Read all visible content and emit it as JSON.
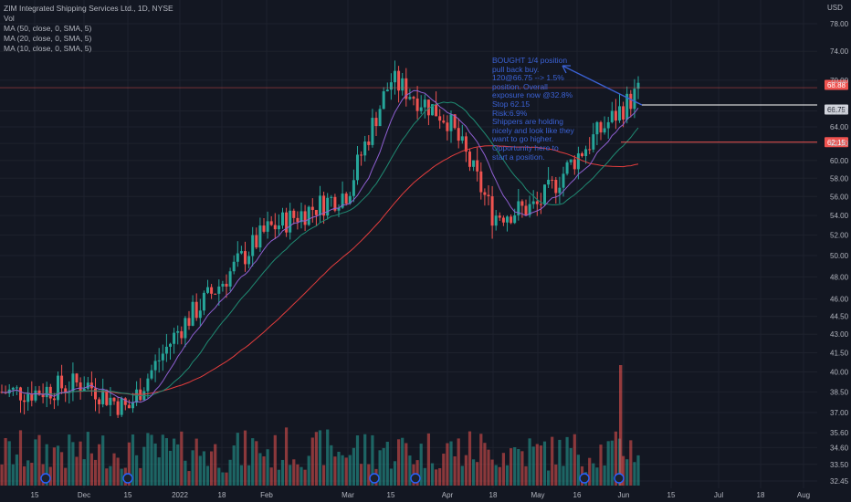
{
  "legend": {
    "title": "ZIM Integrated Shipping Services Ltd., 1D, NYSE",
    "vol": "Vol",
    "ma50": "MA (50, close, 0, SMA, 5)",
    "ma20": "MA (20, close, 0, SMA, 5)",
    "ma10": "MA (10, close, 0, SMA, 5)"
  },
  "currency": "USD",
  "annotation": {
    "lines": [
      "BOUGHT 1/4 position",
      "pull back buy.",
      "120@66.75 --> 1.5%",
      "position. Overall",
      "exposure now @32.8%",
      "Stop 62.15",
      "Risk:6.9%",
      "Shippers are holding",
      "nicely and look like they",
      "want to go higher.",
      "Opportunity here to",
      "start a position."
    ]
  },
  "colors": {
    "background": "#131722",
    "up": "#26a69a",
    "down": "#ef5350",
    "ma50": "#e33d3d",
    "ma20": "#1f8a72",
    "ma10": "#8e5fd1",
    "annotation": "#3b62d6",
    "grid": "#1e222d"
  },
  "chart_data": {
    "type": "candlestick",
    "y_scale": "log",
    "y_ticks": [
      "78.00",
      "74.00",
      "70.00",
      "66.00",
      "64.00",
      "62.00",
      "60.00",
      "58.00",
      "56.00",
      "54.00",
      "52.00",
      "50.00",
      "48.00",
      "46.00",
      "44.50",
      "43.00",
      "41.50",
      "40.00",
      "38.50",
      "37.00",
      "35.60",
      "34.60",
      "33.50",
      "32.45"
    ],
    "x_ticks": [
      "15",
      "Dec",
      "15",
      "2022",
      "18",
      "Feb",
      "Mar",
      "15",
      "Apr",
      "18",
      "May",
      "16",
      "Jun",
      "15",
      "Jul",
      "18",
      "Aug"
    ],
    "price_labels": [
      {
        "text": "68.88",
        "role": "last"
      },
      {
        "text": "66.75",
        "role": "entry"
      },
      {
        "text": "62.15",
        "role": "stop"
      }
    ],
    "entry_price": 66.75,
    "stop_price": 62.15,
    "last_price": 68.88,
    "price_range": [
      32.45,
      80.5
    ],
    "series_close_approx": [
      {
        "label": "Nov 15",
        "close": 38.5
      },
      {
        "label": "Dec",
        "close": 39.2
      },
      {
        "label": "Dec 15",
        "close": 37.2
      },
      {
        "label": "2022",
        "close": 43.5
      },
      {
        "label": "Jan 18",
        "close": 47.5
      },
      {
        "label": "Feb",
        "close": 52.5
      },
      {
        "label": "Mar",
        "close": 56.5
      },
      {
        "label": "Mar 15",
        "close": 70.0
      },
      {
        "label": "Apr",
        "close": 65.0
      },
      {
        "label": "Apr 18",
        "close": 54.0
      },
      {
        "label": "May",
        "close": 55.0
      },
      {
        "label": "May 16",
        "close": 60.5
      },
      {
        "label": "Jun",
        "close": 68.9
      }
    ]
  }
}
